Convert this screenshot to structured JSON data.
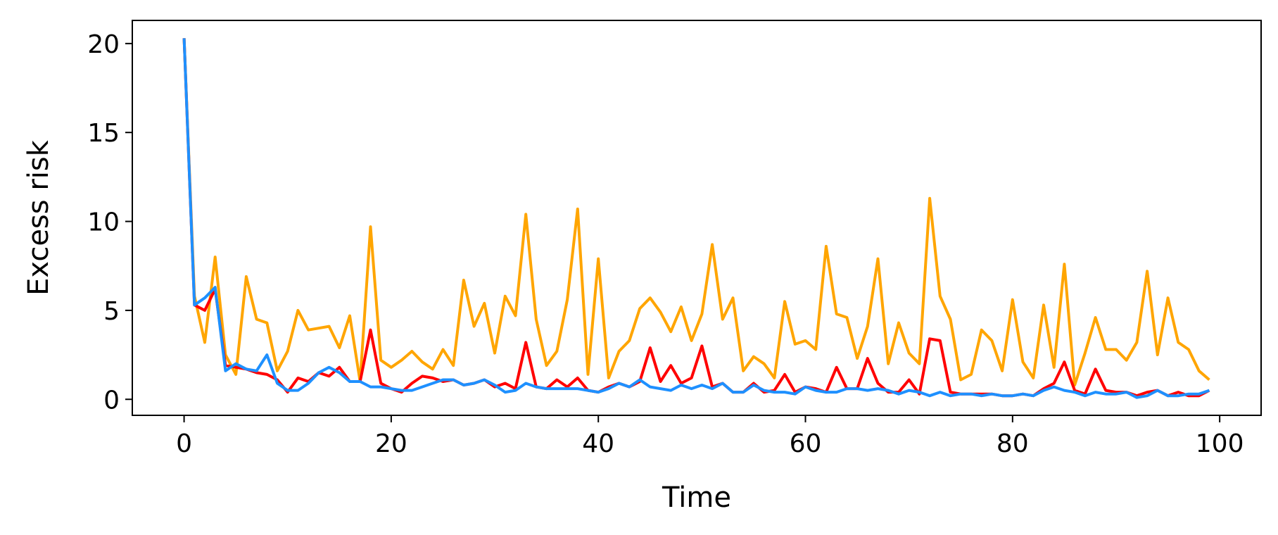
{
  "chart_data": {
    "type": "line",
    "title": "",
    "xlabel": "Time",
    "ylabel": "Excess risk",
    "xlim": [
      -5,
      104
    ],
    "ylim": [
      -0.9,
      21.3
    ],
    "xticks": [
      0,
      20,
      40,
      60,
      80,
      100
    ],
    "yticks": [
      0,
      5,
      10,
      15,
      20
    ],
    "grid": false,
    "legend": "none",
    "x": [
      0,
      1,
      2,
      3,
      4,
      5,
      6,
      7,
      8,
      9,
      10,
      11,
      12,
      13,
      14,
      15,
      16,
      17,
      18,
      19,
      20,
      21,
      22,
      23,
      24,
      25,
      26,
      27,
      28,
      29,
      30,
      31,
      32,
      33,
      34,
      35,
      36,
      37,
      38,
      39,
      40,
      41,
      42,
      43,
      44,
      45,
      46,
      47,
      48,
      49,
      50,
      51,
      52,
      53,
      54,
      55,
      56,
      57,
      58,
      59,
      60,
      61,
      62,
      63,
      64,
      65,
      66,
      67,
      68,
      69,
      70,
      71,
      72,
      73,
      74,
      75,
      76,
      77,
      78,
      79,
      80,
      81,
      82,
      83,
      84,
      85,
      86,
      87,
      88,
      89,
      90,
      91,
      92,
      93,
      94,
      95,
      96,
      97,
      98,
      99
    ],
    "series": [
      {
        "color": "#ffa500",
        "values": [
          20.3,
          5.8,
          3.2,
          8.0,
          2.5,
          1.4,
          6.9,
          4.5,
          4.3,
          1.6,
          2.7,
          5.0,
          3.9,
          4.0,
          4.1,
          2.9,
          4.7,
          1.0,
          9.7,
          2.2,
          1.8,
          2.2,
          2.7,
          2.1,
          1.7,
          2.8,
          1.9,
          6.7,
          4.1,
          5.4,
          2.6,
          5.8,
          4.7,
          10.4,
          4.5,
          1.9,
          2.7,
          5.6,
          10.7,
          1.4,
          7.9,
          1.2,
          2.7,
          3.3,
          5.1,
          5.7,
          4.9,
          3.8,
          5.2,
          3.3,
          4.8,
          8.7,
          4.5,
          5.7,
          1.6,
          2.4,
          2.0,
          1.2,
          5.5,
          3.1,
          3.3,
          2.8,
          8.6,
          4.8,
          4.6,
          2.3,
          4.1,
          7.9,
          2.0,
          4.3,
          2.6,
          2.0,
          11.3,
          5.8,
          4.5,
          1.1,
          1.4,
          3.9,
          3.3,
          1.6,
          5.6,
          2.1,
          1.2,
          5.3,
          1.8,
          7.6,
          0.8,
          2.6,
          4.6,
          2.8,
          2.8,
          2.2,
          3.2,
          7.2,
          2.5,
          5.7,
          3.2,
          2.8,
          1.6,
          1.1
        ]
      },
      {
        "color": "#ff0000",
        "values": [
          20.3,
          5.3,
          5.0,
          6.2,
          1.9,
          1.8,
          1.7,
          1.5,
          1.4,
          1.1,
          0.4,
          1.2,
          1.0,
          1.5,
          1.3,
          1.8,
          1.0,
          1.0,
          3.9,
          0.9,
          0.6,
          0.4,
          0.9,
          1.3,
          1.2,
          1.0,
          1.1,
          0.8,
          0.9,
          1.1,
          0.7,
          0.9,
          0.6,
          3.2,
          0.7,
          0.6,
          1.1,
          0.7,
          1.2,
          0.5,
          0.4,
          0.7,
          0.9,
          0.7,
          1.0,
          2.9,
          1.0,
          1.9,
          0.9,
          1.2,
          3.0,
          0.7,
          0.9,
          0.4,
          0.4,
          0.9,
          0.4,
          0.5,
          1.4,
          0.4,
          0.7,
          0.6,
          0.4,
          1.8,
          0.6,
          0.6,
          2.3,
          0.9,
          0.4,
          0.4,
          1.1,
          0.3,
          3.4,
          3.3,
          0.4,
          0.3,
          0.3,
          0.3,
          0.3,
          0.2,
          0.2,
          0.3,
          0.2,
          0.6,
          0.9,
          2.1,
          0.5,
          0.3,
          1.7,
          0.5,
          0.4,
          0.4,
          0.2,
          0.4,
          0.5,
          0.2,
          0.4,
          0.2,
          0.2,
          0.5
        ]
      },
      {
        "color": "#1e90ff",
        "values": [
          20.3,
          5.3,
          5.7,
          6.3,
          1.6,
          2.0,
          1.7,
          1.6,
          2.5,
          0.9,
          0.5,
          0.5,
          0.9,
          1.5,
          1.8,
          1.5,
          1.0,
          1.0,
          0.7,
          0.7,
          0.6,
          0.5,
          0.5,
          0.7,
          0.9,
          1.1,
          1.1,
          0.8,
          0.9,
          1.1,
          0.8,
          0.4,
          0.5,
          0.9,
          0.7,
          0.6,
          0.6,
          0.6,
          0.6,
          0.5,
          0.4,
          0.6,
          0.9,
          0.7,
          1.1,
          0.7,
          0.6,
          0.5,
          0.8,
          0.6,
          0.8,
          0.6,
          0.9,
          0.4,
          0.4,
          0.8,
          0.5,
          0.4,
          0.4,
          0.3,
          0.7,
          0.5,
          0.4,
          0.4,
          0.6,
          0.6,
          0.5,
          0.6,
          0.5,
          0.3,
          0.5,
          0.4,
          0.2,
          0.4,
          0.2,
          0.3,
          0.3,
          0.2,
          0.3,
          0.2,
          0.2,
          0.3,
          0.2,
          0.5,
          0.7,
          0.5,
          0.4,
          0.2,
          0.4,
          0.3,
          0.3,
          0.4,
          0.1,
          0.2,
          0.5,
          0.2,
          0.2,
          0.3,
          0.3,
          0.5
        ]
      }
    ]
  }
}
